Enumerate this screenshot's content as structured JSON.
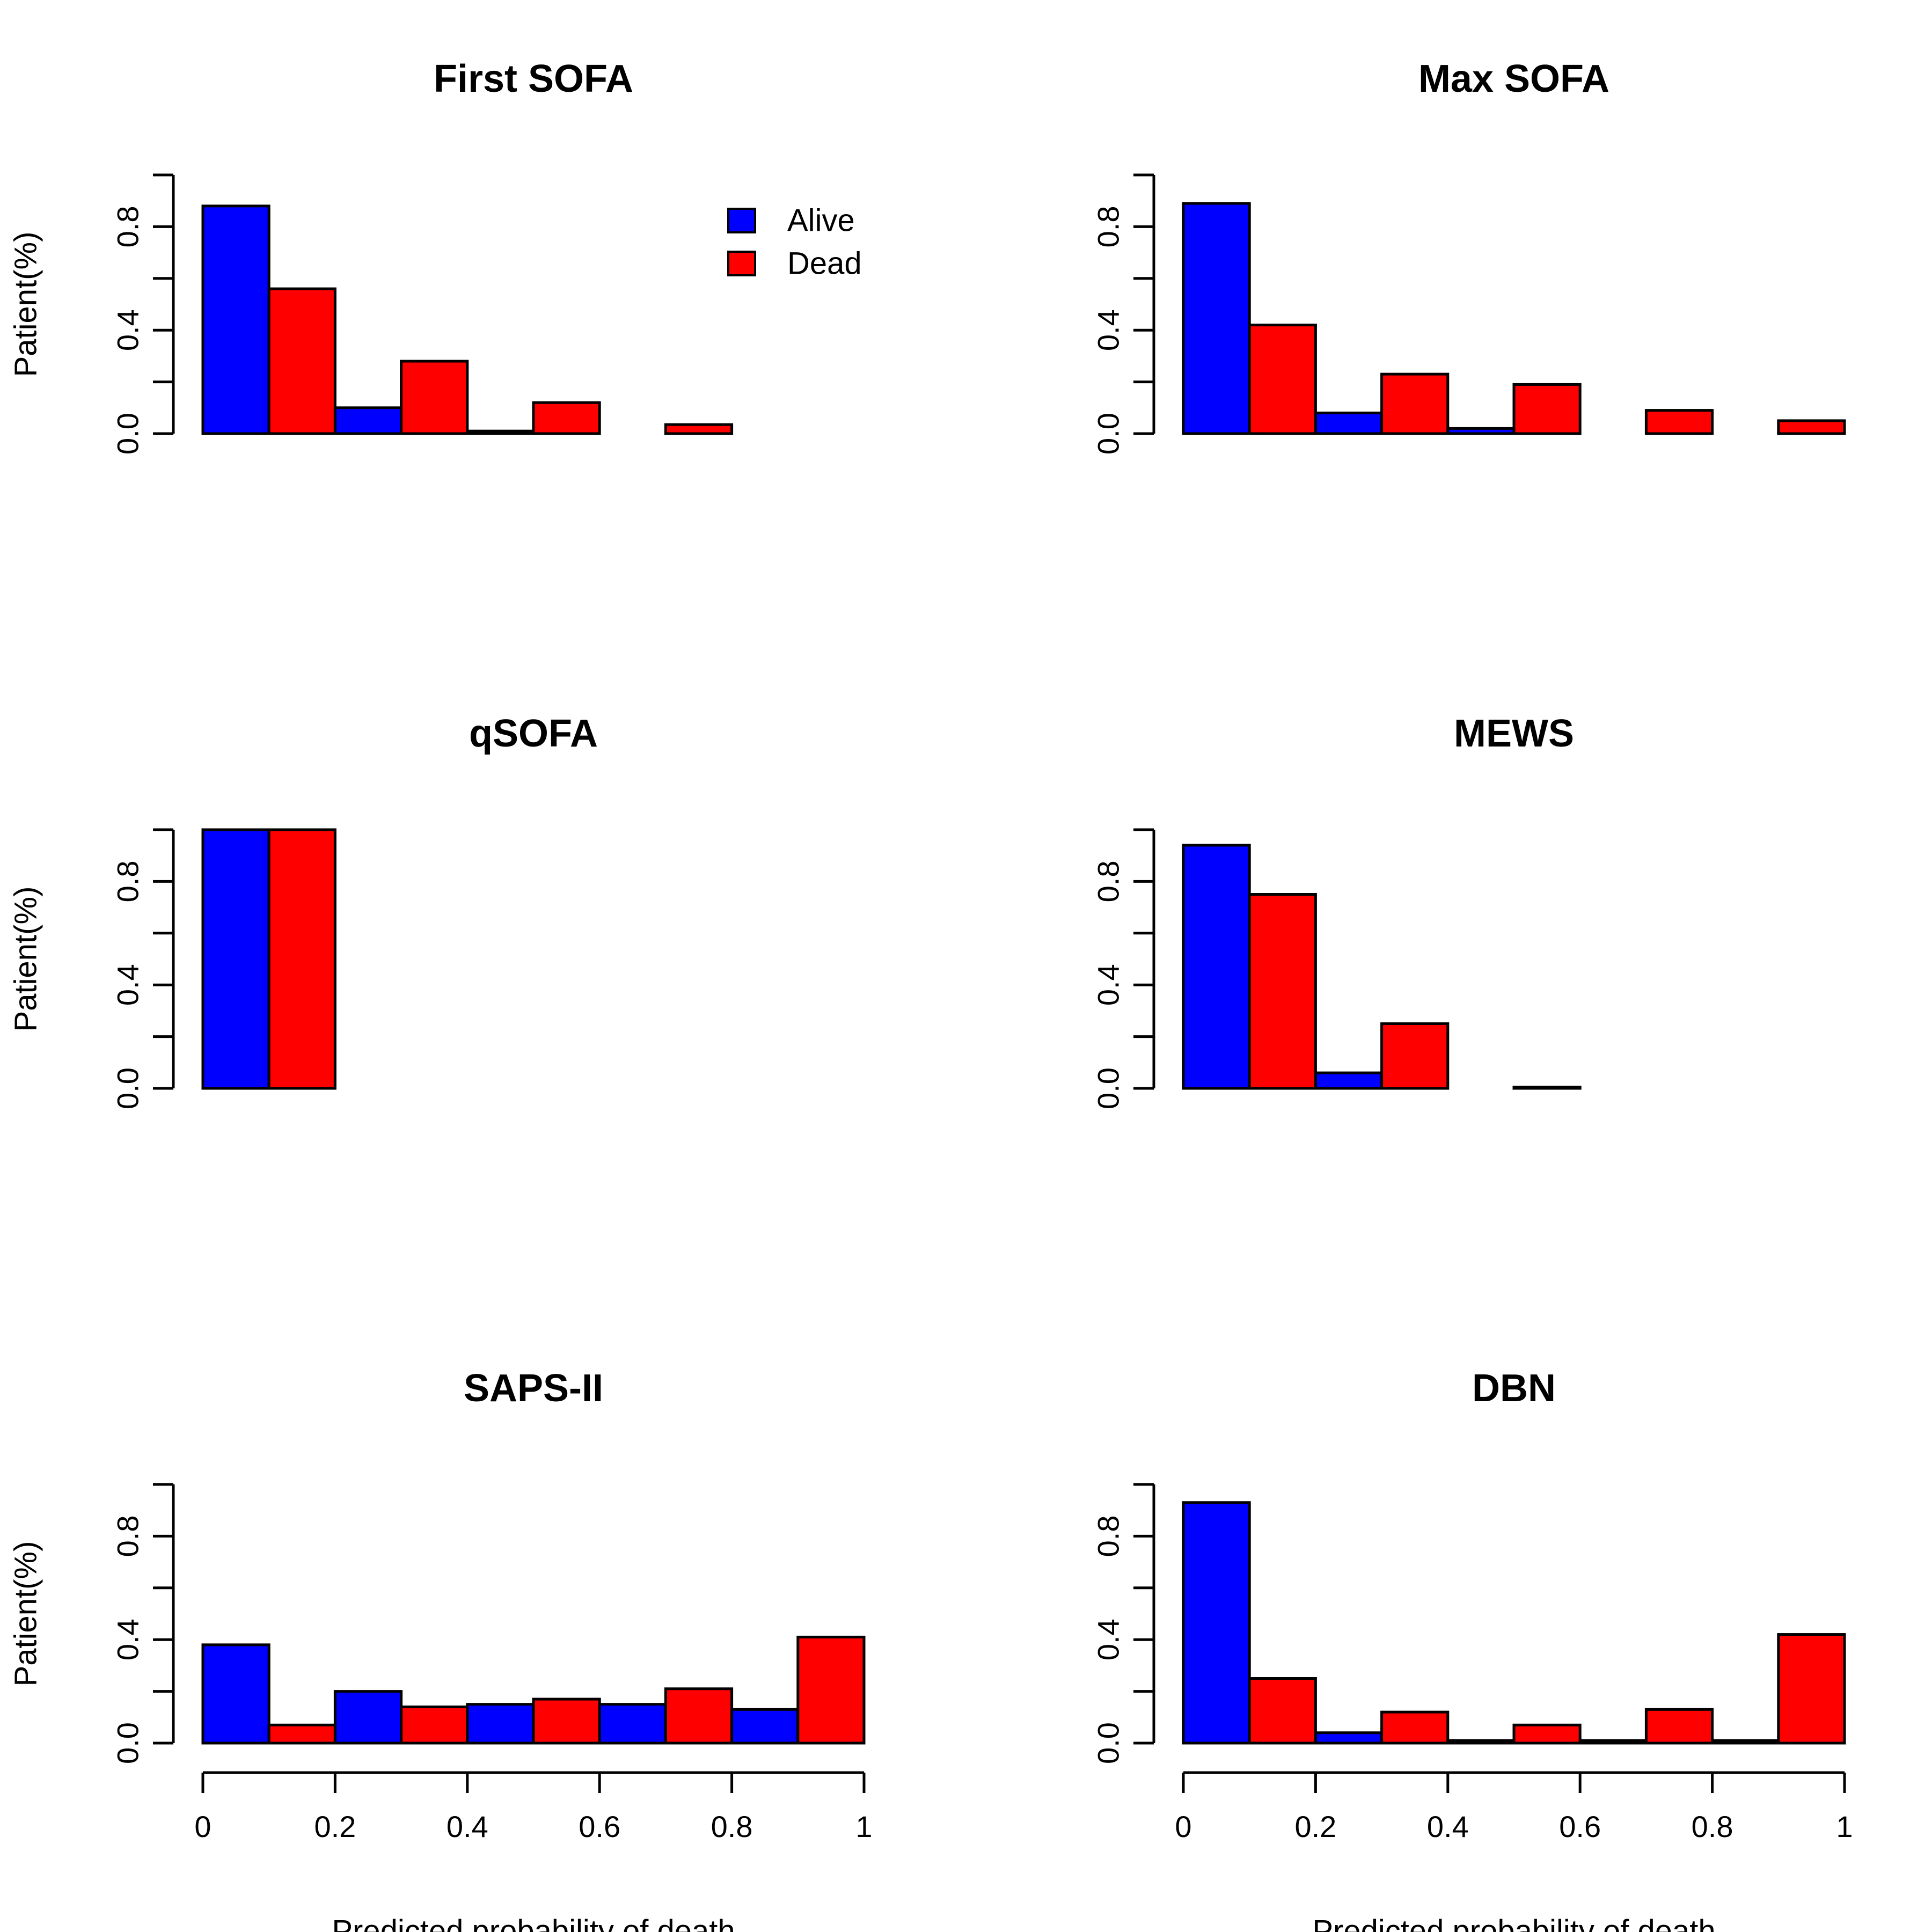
{
  "colors": {
    "alive": "#0000ff",
    "dead": "#ff0000",
    "axis": "#000000"
  },
  "chart_data": [
    {
      "type": "bar",
      "title": "First SOFA",
      "xlabel": "",
      "ylabel": "Patient(%)",
      "xlim": [
        0,
        1
      ],
      "ylim": [
        0,
        1
      ],
      "yticks": [
        "0.0",
        "0.4",
        "0.8"
      ],
      "xticks": [],
      "legend": {
        "position": "top-right",
        "entries": [
          "Alive",
          "Dead"
        ]
      },
      "bin_width": 0.1,
      "bins": [
        0.0,
        0.1,
        0.2,
        0.3,
        0.4,
        0.5,
        0.6,
        0.7,
        0.8,
        0.9
      ],
      "series_per_bin": [
        "Alive",
        "Dead",
        "Alive",
        "Dead",
        "Alive",
        "Dead",
        "Alive",
        "Dead",
        "Alive",
        "Dead"
      ],
      "values": [
        0.88,
        0.56,
        0.1,
        0.28,
        0.01,
        0.12,
        0.0,
        0.035,
        0.0,
        0.0
      ]
    },
    {
      "type": "bar",
      "title": "Max SOFA",
      "xlabel": "",
      "ylabel": "",
      "xlim": [
        0,
        1
      ],
      "ylim": [
        0,
        1
      ],
      "yticks": [
        "0.0",
        "0.4",
        "0.8"
      ],
      "xticks": [],
      "bin_width": 0.1,
      "bins": [
        0.0,
        0.1,
        0.2,
        0.3,
        0.4,
        0.5,
        0.6,
        0.7,
        0.8,
        0.9
      ],
      "series_per_bin": [
        "Alive",
        "Dead",
        "Alive",
        "Dead",
        "Alive",
        "Dead",
        "Alive",
        "Dead",
        "Alive",
        "Dead"
      ],
      "values": [
        0.89,
        0.42,
        0.08,
        0.23,
        0.02,
        0.19,
        0.0,
        0.09,
        0.0,
        0.05
      ]
    },
    {
      "type": "bar",
      "title": "qSOFA",
      "xlabel": "",
      "ylabel": "Patient(%)",
      "xlim": [
        0,
        1
      ],
      "ylim": [
        0,
        1
      ],
      "yticks": [
        "0.0",
        "0.4",
        "0.8"
      ],
      "xticks": [],
      "bin_width": 0.1,
      "bins": [
        0.0,
        0.1,
        0.2,
        0.3,
        0.4,
        0.5,
        0.6,
        0.7,
        0.8,
        0.9
      ],
      "series_per_bin": [
        "Alive",
        "Dead",
        "Alive",
        "Dead",
        "Alive",
        "Dead",
        "Alive",
        "Dead",
        "Alive",
        "Dead"
      ],
      "values": [
        1.0,
        1.0,
        0.0,
        0.0,
        0.0,
        0.0,
        0.0,
        0.0,
        0.0,
        0.0
      ]
    },
    {
      "type": "bar",
      "title": "MEWS",
      "xlabel": "",
      "ylabel": "",
      "xlim": [
        0,
        1
      ],
      "ylim": [
        0,
        1
      ],
      "yticks": [
        "0.0",
        "0.4",
        "0.8"
      ],
      "xticks": [],
      "bin_width": 0.1,
      "bins": [
        0.0,
        0.1,
        0.2,
        0.3,
        0.4,
        0.5,
        0.6,
        0.7,
        0.8,
        0.9
      ],
      "series_per_bin": [
        "Alive",
        "Dead",
        "Alive",
        "Dead",
        "Alive",
        "Dead",
        "Alive",
        "Dead",
        "Alive",
        "Dead"
      ],
      "values": [
        0.94,
        0.75,
        0.06,
        0.25,
        0.0,
        0.005,
        0.0,
        0.0,
        0.0,
        0.0
      ]
    },
    {
      "type": "bar",
      "title": "SAPS-II",
      "xlabel": "Predicted probability of death",
      "ylabel": "Patient(%)",
      "xlim": [
        0,
        1
      ],
      "ylim": [
        0,
        1
      ],
      "yticks": [
        "0.0",
        "0.4",
        "0.8"
      ],
      "xticks": [
        "0",
        "0.2",
        "0.4",
        "0.6",
        "0.8",
        "1"
      ],
      "bin_width": 0.1,
      "bins": [
        0.0,
        0.1,
        0.2,
        0.3,
        0.4,
        0.5,
        0.6,
        0.7,
        0.8,
        0.9
      ],
      "series_per_bin": [
        "Alive",
        "Dead",
        "Alive",
        "Dead",
        "Alive",
        "Dead",
        "Alive",
        "Dead",
        "Alive",
        "Dead"
      ],
      "values": [
        0.38,
        0.07,
        0.2,
        0.14,
        0.15,
        0.17,
        0.15,
        0.21,
        0.13,
        0.41
      ]
    },
    {
      "type": "bar",
      "title": "DBN",
      "xlabel": "Predicted probability of death",
      "ylabel": "",
      "xlim": [
        0,
        1
      ],
      "ylim": [
        0,
        1
      ],
      "yticks": [
        "0.0",
        "0.4",
        "0.8"
      ],
      "xticks": [
        "0",
        "0.2",
        "0.4",
        "0.6",
        "0.8",
        "1"
      ],
      "bin_width": 0.1,
      "bins": [
        0.0,
        0.1,
        0.2,
        0.3,
        0.4,
        0.5,
        0.6,
        0.7,
        0.8,
        0.9
      ],
      "series_per_bin": [
        "Alive",
        "Dead",
        "Alive",
        "Dead",
        "Alive",
        "Dead",
        "Alive",
        "Dead",
        "Alive",
        "Dead"
      ],
      "values": [
        0.93,
        0.25,
        0.04,
        0.12,
        0.01,
        0.07,
        0.01,
        0.13,
        0.01,
        0.42
      ]
    }
  ]
}
